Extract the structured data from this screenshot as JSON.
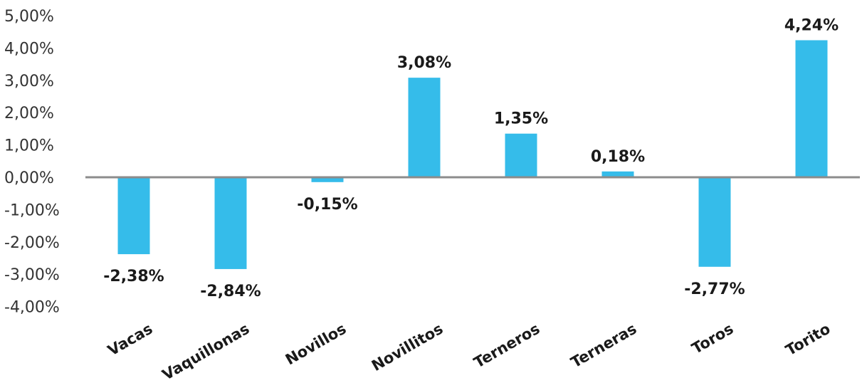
{
  "chart_data": {
    "type": "bar",
    "title": "",
    "xlabel": "",
    "ylabel": "",
    "categories": [
      "Vacas",
      "Vaquillonas",
      "Novillos",
      "Novillitos",
      "Terneros",
      "Terneras",
      "Toros",
      "Torito"
    ],
    "values": [
      -2.38,
      -2.84,
      -0.15,
      3.08,
      1.35,
      0.18,
      -2.77,
      4.24
    ],
    "data_labels": [
      "-2,38%",
      "-2,84%",
      "-0,15%",
      "3,08%",
      "1,35%",
      "0,18%",
      "-2,77%",
      "4,24%"
    ],
    "ylim": [
      -4,
      5
    ],
    "y_ticks": [
      5,
      4,
      3,
      2,
      1,
      0,
      -1,
      -2,
      -3,
      -4
    ],
    "y_tick_labels": [
      "5,00%",
      "4,00%",
      "3,00%",
      "2,00%",
      "1,00%",
      "0,00%",
      "-1,00%",
      "-2,00%",
      "-3,00%",
      "-4,00%"
    ],
    "grid": false,
    "legend": "none",
    "colors": {
      "bar": "#35bcea",
      "zero_line": "#8c8c8c",
      "text": "#1a1a1a"
    }
  }
}
